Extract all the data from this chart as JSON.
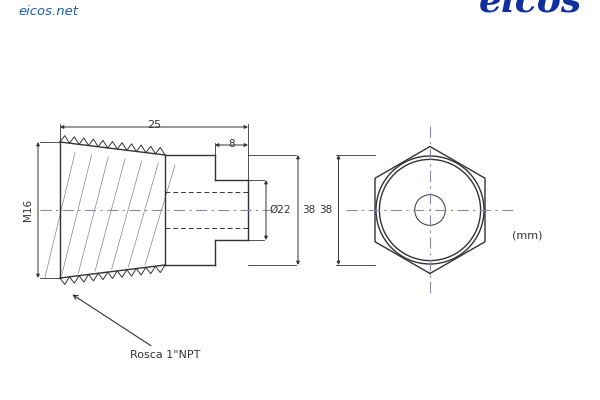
{
  "bg_color": "#ffffff",
  "line_color": "#333333",
  "dim_color": "#333333",
  "center_line_color": "#8888aa",
  "blue_color": "#1a5fa8",
  "rosca_label": "Rosca 1\"NPT",
  "units_label": "(mm)",
  "website_label": "eicos.net",
  "brand_label": "eicos",
  "dim_25": "25",
  "dim_8": "8",
  "dim_22": "Ø22",
  "dim_38_side": "38",
  "dim_38_front": "38",
  "dim_M16": "M16"
}
